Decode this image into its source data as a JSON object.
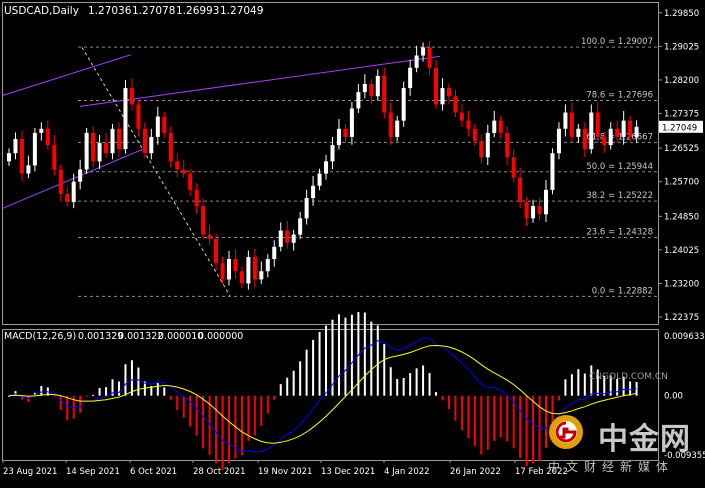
{
  "header": {
    "symbol": "USDCAD,Daily",
    "open": "1.27036",
    "high": "1.27078",
    "low": "1.26993",
    "close": "1.27049"
  },
  "colors": {
    "background": "#000000",
    "bull_candle": "#ffffff",
    "bear_candle": "#ff0000",
    "channel_line": "#a040ff",
    "fib_line": "#8a8a8a",
    "macd_main": "#0000ff",
    "macd_signal": "#ffff00",
    "hist_pos": "#ffffff",
    "hist_neg": "#ff0000"
  },
  "watermark": {
    "site_cn": "中金网",
    "url": "CNGOLD.COM.CN",
    "tagline": "中文财经新媒体"
  },
  "chart_data": [
    {
      "type": "candlestick",
      "title": "USDCAD,Daily",
      "ylim": [
        1.2218,
        1.3009
      ],
      "y_ticks": [
        "1.29850",
        "1.29025",
        "1.28200",
        "1.27375",
        "1.26525",
        "1.25700",
        "1.24850",
        "1.24025",
        "1.23200",
        "1.22375"
      ],
      "last_price_label": "1.27049",
      "x_labels": [
        "23 Aug 2021",
        "14 Sep 2021",
        "6 Oct 2021",
        "28 Oct 2021",
        "19 Nov 2021",
        "13 Dec 2021",
        "4 Jan 2022",
        "26 Jan 2022",
        "17 Feb 2022"
      ],
      "fibonacci": [
        {
          "label": "100.0 = 1.29007",
          "value": 1.29007
        },
        {
          "label": "78.6 = 1.27696",
          "value": 1.27696
        },
        {
          "label": "61.8 = 1.26667",
          "value": 1.26667
        },
        {
          "label": "50.0 = 1.25944",
          "value": 1.25944
        },
        {
          "label": "38.2 = 1.25222",
          "value": 1.25222
        },
        {
          "label": "23.6 = 1.24328",
          "value": 1.24328
        },
        {
          "label": "0.0 = 1.22882",
          "value": 1.22882
        }
      ],
      "channel_upper": [
        [
          1.2782,
          1.2882
        ],
        [
          1.2896,
          1.2906
        ],
        [
          1.2755,
          1.2878
        ],
        [
          1.2894,
          1.301
        ]
      ],
      "channel_lower": [
        [
          1.2505,
          1.265
        ],
        [
          1.2583,
          1.265
        ]
      ],
      "retracement_line": [
        [
          1.29,
          1.229
        ]
      ],
      "closes": [
        1.264,
        1.2675,
        1.259,
        1.261,
        1.269,
        1.27,
        1.266,
        1.26,
        1.254,
        1.252,
        1.257,
        1.26,
        1.269,
        1.262,
        1.2665,
        1.264,
        1.27,
        1.265,
        1.28,
        1.276,
        1.27,
        1.264,
        1.268,
        1.273,
        1.269,
        1.262,
        1.26,
        1.259,
        1.255,
        1.251,
        1.244,
        1.243,
        1.237,
        1.233,
        1.238,
        1.235,
        1.232,
        1.2385,
        1.233,
        1.235,
        1.238,
        1.241,
        1.245,
        1.242,
        1.244,
        1.248,
        1.253,
        1.256,
        1.259,
        1.262,
        1.266,
        1.27,
        1.268,
        1.275,
        1.279,
        1.281,
        1.278,
        1.283,
        1.274,
        1.268,
        1.272,
        1.28,
        1.285,
        1.288,
        1.29,
        1.285,
        1.276,
        1.28,
        1.278,
        1.274,
        1.272,
        1.27,
        1.267,
        1.263,
        1.269,
        1.272,
        1.269,
        1.263,
        1.258,
        1.252,
        1.248,
        1.251,
        1.249,
        1.255,
        1.264,
        1.27,
        1.274,
        1.268,
        1.27,
        1.265,
        1.274,
        1.268,
        1.266,
        1.27,
        1.268,
        1.272,
        1.268,
        1.2705
      ],
      "macd": {
        "label": "MACD(12,26,9)",
        "main": "0.001329",
        "signal": "0.001322",
        "histogram": "0.000010",
        "extra": "0.000000",
        "ylim": [
          -0.0095,
          0.0097
        ],
        "y_ticks": [
          "0.009633",
          "0.00",
          "-0.009355"
        ]
      }
    }
  ]
}
